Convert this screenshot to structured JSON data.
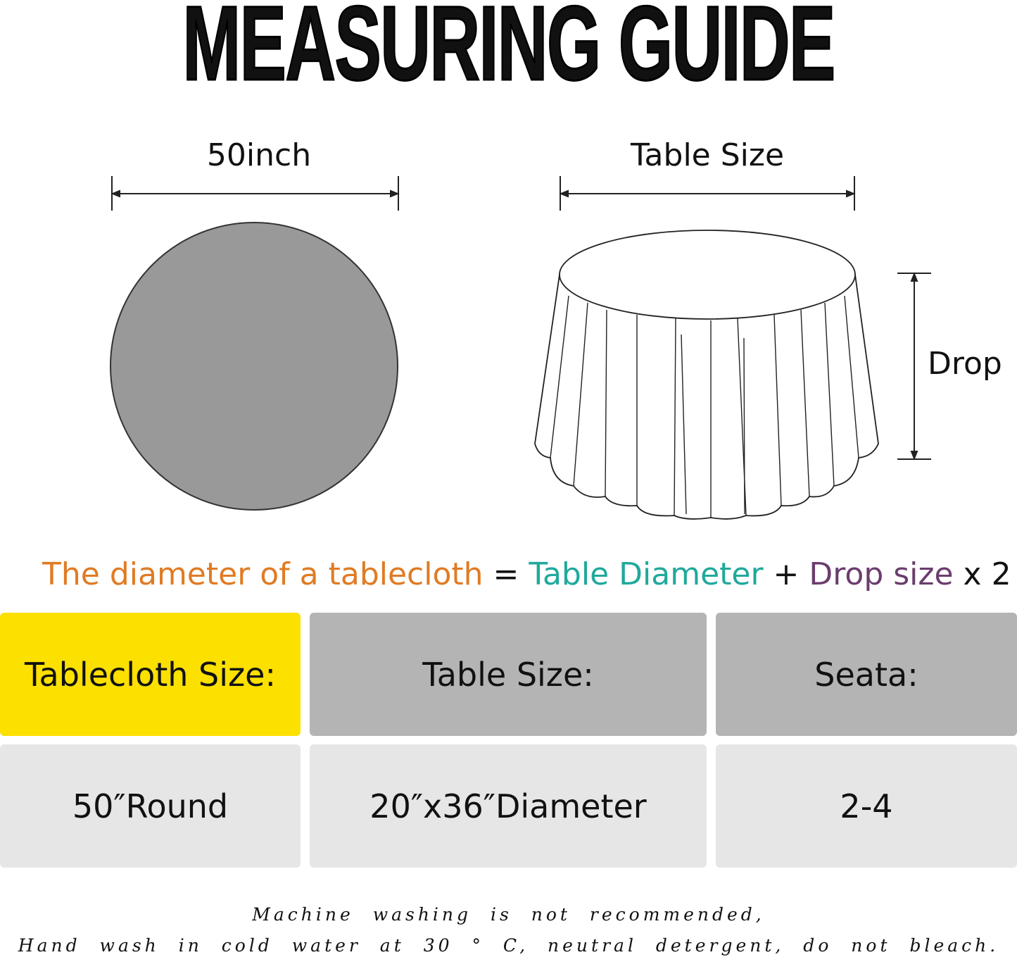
{
  "title": "MEASURING GUIDE",
  "flat_diagram": {
    "width_label": "50inch",
    "fill": "#999999"
  },
  "draped_diagram": {
    "width_label": "Table Size",
    "drop_label": "Drop"
  },
  "formula": {
    "part1": "The diameter of a tablecloth",
    "eq": " = ",
    "part2": "Table Diameter",
    "plus": " + ",
    "part3": "Drop size",
    "tail": " x 2",
    "colors": {
      "part1": "#e07b24",
      "part2": "#20a99c",
      "part3": "#6b3d6e"
    }
  },
  "table": {
    "headers": [
      "Tablecloth Size:",
      "Table Size:",
      "Seata:"
    ],
    "row": [
      "50″Round",
      "20″x36″Diameter",
      "2-4"
    ],
    "colors": {
      "highlight": "#fce000",
      "header": "#b4b4b4",
      "row": "#e6e6e6"
    }
  },
  "care": {
    "line1": "Machine washing is not recommended,",
    "line2": "Hand wash in cold water at 30 ° C, neutral detergent, do not bleach."
  }
}
